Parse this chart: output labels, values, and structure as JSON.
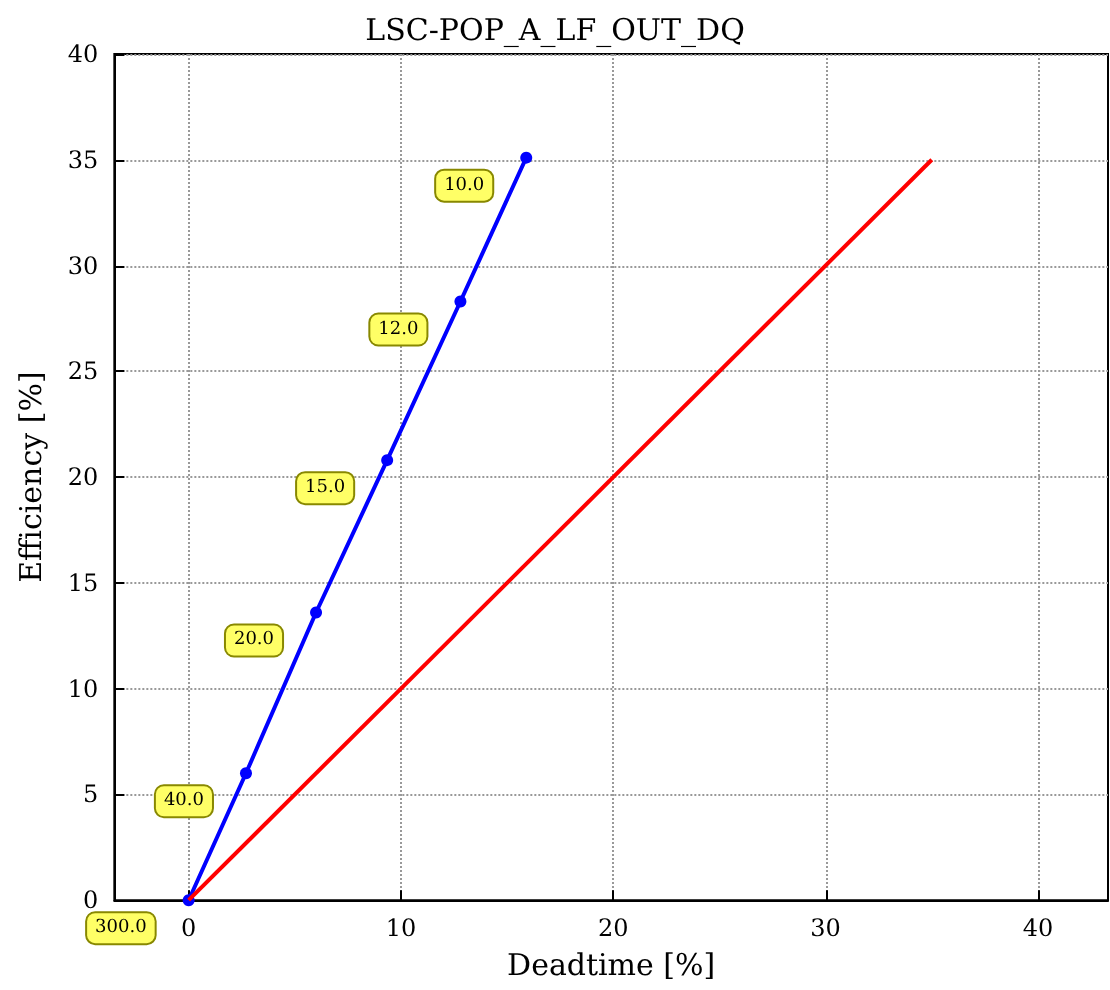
{
  "chart_data": {
    "type": "line",
    "title": "LSC-POP_A_LF_OUT_DQ",
    "xlabel": "Deadtime [%]",
    "ylabel": "Efficiency [%]",
    "series": [
      {
        "color": "#0000ff",
        "x": [
          0,
          2.7,
          6.0,
          9.35,
          12.8,
          15.9
        ],
        "values": [
          0,
          6.0,
          13.6,
          20.8,
          28.3,
          35.1
        ],
        "marker": "circle"
      },
      {
        "color": "#ff0000",
        "x": [
          0,
          35
        ],
        "values": [
          0,
          35
        ],
        "marker": "none"
      }
    ],
    "annotations": [
      {
        "text": "300.0",
        "x": 0,
        "y": 0
      },
      {
        "text": "40.0",
        "x": 2.7,
        "y": 6.0
      },
      {
        "text": "20.0",
        "x": 6.0,
        "y": 13.6
      },
      {
        "text": "15.0",
        "x": 9.35,
        "y": 20.8
      },
      {
        "text": "12.0",
        "x": 12.8,
        "y": 28.3
      },
      {
        "text": "10.0",
        "x": 15.9,
        "y": 35.1
      }
    ],
    "xlim": [
      -3.5,
      43.3
    ],
    "xticks": [
      0,
      10,
      20,
      30,
      40
    ],
    "ylim": [
      0,
      40
    ],
    "yticks": [
      0,
      5,
      10,
      15,
      20,
      25,
      30,
      35,
      40
    ],
    "grid": true
  }
}
